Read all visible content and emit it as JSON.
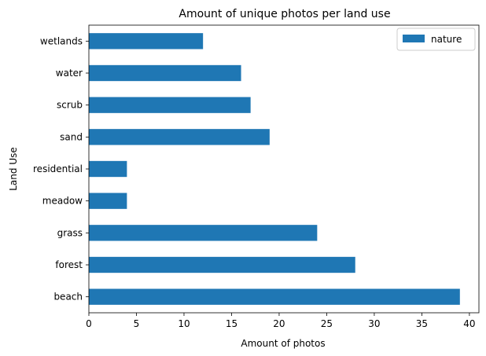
{
  "chart_data": {
    "type": "bar",
    "orientation": "horizontal",
    "title": "Amount of unique photos per land use",
    "xlabel": "Amount of photos",
    "ylabel": "Land Use",
    "categories": [
      "beach",
      "forest",
      "grass",
      "meadow",
      "residential",
      "sand",
      "scrub",
      "water",
      "wetlands"
    ],
    "series": [
      {
        "name": "nature",
        "values": [
          39,
          28,
          24,
          4,
          4,
          19,
          17,
          16,
          12
        ],
        "color": "#1f77b4"
      }
    ],
    "xlim": [
      0,
      41
    ],
    "xticks": [
      0,
      5,
      10,
      15,
      20,
      25,
      30,
      35,
      40
    ],
    "grid": false,
    "legend": {
      "position": "top-right"
    }
  }
}
